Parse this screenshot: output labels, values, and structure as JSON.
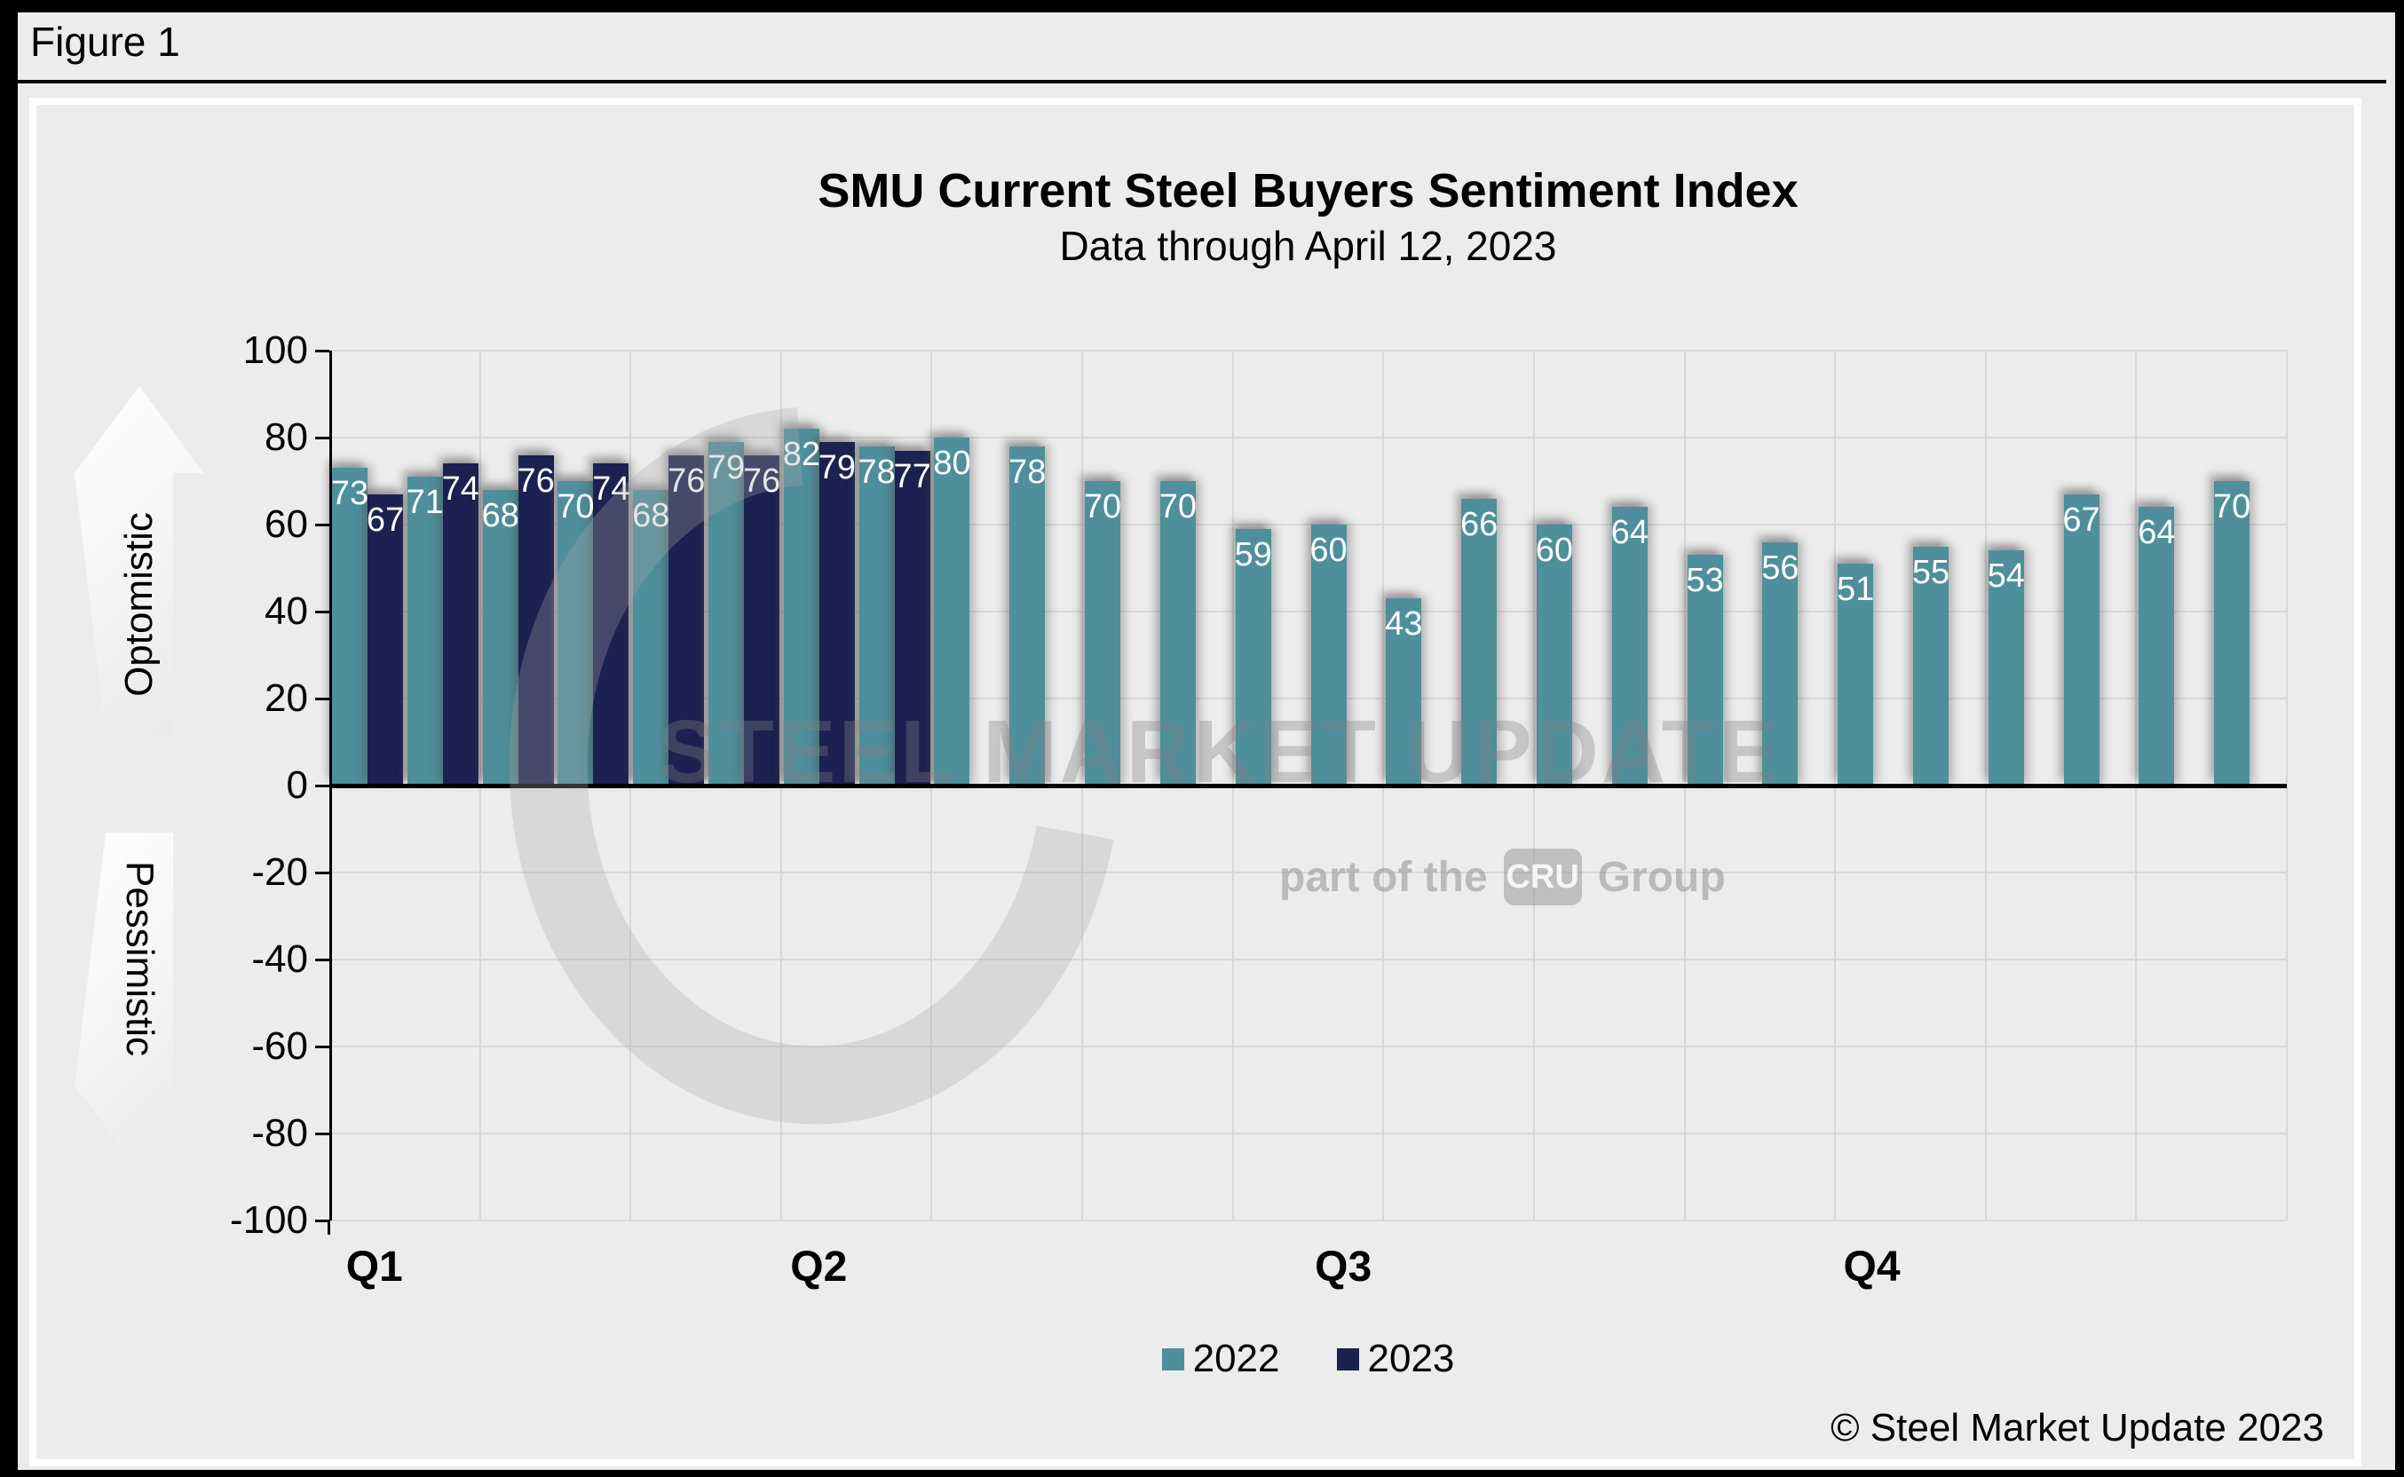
{
  "figure_label": "Figure 1",
  "chart": {
    "title": "SMU Current Steel Buyers Sentiment Index",
    "subtitle": "Data through April 12, 2023",
    "optimistic_label": "Optomistic",
    "pessimistic_label": "Pessimistic",
    "copyright": "© Steel Market Update 2023",
    "watermark": {
      "main": "STEEL MARKET UPDATE",
      "sub_prefix": "part of the",
      "sub_box": "CRU",
      "sub_suffix": "Group"
    }
  },
  "chart_data": {
    "type": "bar",
    "title": "SMU Current Steel Buyers Sentiment Index",
    "subtitle": "Data through April 12, 2023",
    "ylim": [
      -100,
      100
    ],
    "yticks": [
      100,
      80,
      60,
      40,
      20,
      0,
      -20,
      -40,
      -60,
      -80,
      -100
    ],
    "grid": true,
    "legend_position": "bottom-center",
    "categories_note": "26 bi-weekly survey periods across the year; 2023 series has data only through April 12",
    "quarter_labels": [
      "Q1",
      "Q2",
      "Q3",
      "Q4"
    ],
    "series": [
      {
        "name": "2022",
        "color": "#4E8F9B",
        "values": [
          73,
          71,
          68,
          70,
          68,
          79,
          82,
          78,
          80,
          78,
          70,
          70,
          59,
          60,
          43,
          66,
          60,
          64,
          53,
          56,
          51,
          55,
          54,
          67,
          64,
          70
        ]
      },
      {
        "name": "2023",
        "color": "#1B2150",
        "values": [
          67,
          74,
          76,
          74,
          76,
          76,
          79,
          77
        ]
      }
    ]
  },
  "colors": {
    "teal_2022": "#4E8F9B",
    "navy_2023": "#1B2150",
    "background": "#ECECEC",
    "gridline": "#D8D8D8",
    "axis": "#000000",
    "bar_value_text": "#FFFFFF"
  }
}
